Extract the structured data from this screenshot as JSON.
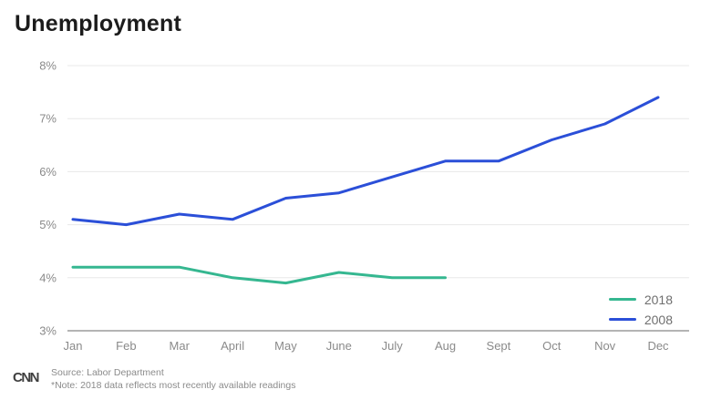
{
  "title": "Unemployment",
  "footer": {
    "logo": "CNN",
    "source": "Source: Labor Department",
    "note": "*Note: 2018 data reflects most recently available readings"
  },
  "chart_data": {
    "type": "line",
    "title": "Unemployment",
    "xlabel": "",
    "ylabel": "",
    "categories": [
      "Jan",
      "Feb",
      "Mar",
      "April",
      "May",
      "June",
      "July",
      "Aug",
      "Sept",
      "Oct",
      "Nov",
      "Dec"
    ],
    "ylim": [
      3,
      8
    ],
    "yticks": [
      3,
      4,
      5,
      6,
      7,
      8
    ],
    "ytick_labels": [
      "3%",
      "4%",
      "5%",
      "6%",
      "7%",
      "8%"
    ],
    "grid": "horizontal",
    "legend_position": "bottom-right",
    "series": [
      {
        "name": "2018",
        "color": "#35b790",
        "values": [
          4.2,
          4.2,
          4.2,
          4.0,
          3.9,
          4.1,
          4.0,
          4.0,
          null,
          null,
          null,
          null
        ]
      },
      {
        "name": "2008",
        "color": "#2b4fd8",
        "values": [
          5.1,
          5.0,
          5.2,
          5.1,
          5.5,
          5.6,
          5.9,
          6.2,
          6.2,
          6.6,
          6.9,
          7.4
        ]
      }
    ],
    "colors": {
      "grid": "#e8e8e8",
      "axis": "#9b9b9b",
      "tick_text": "#8a8a8a"
    }
  }
}
